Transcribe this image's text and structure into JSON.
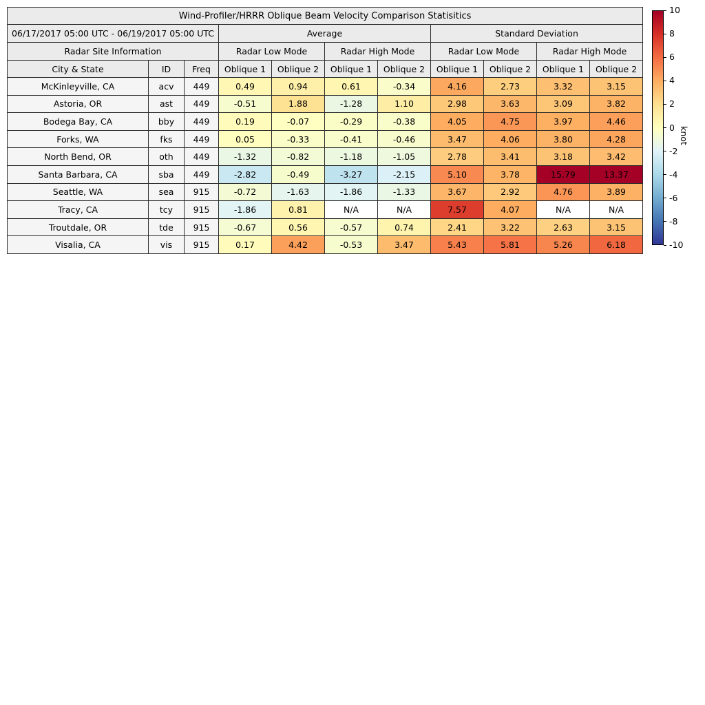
{
  "chart_data": {
    "type": "heatmap",
    "title": "Wind-Profiler/HRRR Oblique Beam Velocity Comparison Statisitics",
    "date_range": "06/17/2017 05:00 UTC - 06/19/2017 05:00 UTC",
    "group_headers": [
      "Average",
      "Standard Deviation"
    ],
    "site_info_header": "Radar Site Information",
    "mode_headers": [
      "Radar Low Mode",
      "Radar High Mode",
      "Radar Low Mode",
      "Radar High Mode"
    ],
    "column_headers": [
      "City & State",
      "ID",
      "Freq",
      "Oblique 1",
      "Oblique 2",
      "Oblique 1",
      "Oblique 2",
      "Oblique 1",
      "Oblique 2",
      "Oblique 1",
      "Oblique 2"
    ],
    "rows": [
      {
        "city": "McKinleyville, CA",
        "id": "acv",
        "freq": "449",
        "values": [
          "0.49",
          "0.94",
          "0.61",
          "-0.34",
          "4.16",
          "2.73",
          "3.32",
          "3.15"
        ]
      },
      {
        "city": "Astoria, OR",
        "id": "ast",
        "freq": "449",
        "values": [
          "-0.51",
          "1.88",
          "-1.28",
          "1.10",
          "2.98",
          "3.63",
          "3.09",
          "3.82"
        ]
      },
      {
        "city": "Bodega Bay, CA",
        "id": "bby",
        "freq": "449",
        "values": [
          "0.19",
          "-0.07",
          "-0.29",
          "-0.38",
          "4.05",
          "4.75",
          "3.97",
          "4.46"
        ]
      },
      {
        "city": "Forks, WA",
        "id": "fks",
        "freq": "449",
        "values": [
          "0.05",
          "-0.33",
          "-0.41",
          "-0.46",
          "3.47",
          "4.06",
          "3.80",
          "4.28"
        ]
      },
      {
        "city": "North Bend, OR",
        "id": "oth",
        "freq": "449",
        "values": [
          "-1.32",
          "-0.82",
          "-1.18",
          "-1.05",
          "2.78",
          "3.41",
          "3.18",
          "3.42"
        ]
      },
      {
        "city": "Santa Barbara, CA",
        "id": "sba",
        "freq": "449",
        "values": [
          "-2.82",
          "-0.49",
          "-3.27",
          "-2.15",
          "5.10",
          "3.78",
          "15.79",
          "13.37"
        ]
      },
      {
        "city": "Seattle, WA",
        "id": "sea",
        "freq": "915",
        "values": [
          "-0.72",
          "-1.63",
          "-1.86",
          "-1.33",
          "3.67",
          "2.92",
          "4.76",
          "3.89"
        ]
      },
      {
        "city": "Tracy, CA",
        "id": "tcy",
        "freq": "915",
        "values": [
          "-1.86",
          "0.81",
          "N/A",
          "N/A",
          "7.57",
          "4.07",
          "N/A",
          "N/A"
        ]
      },
      {
        "city": "Troutdale, OR",
        "id": "tde",
        "freq": "915",
        "values": [
          "-0.67",
          "0.56",
          "-0.57",
          "0.74",
          "2.41",
          "3.22",
          "2.63",
          "3.15"
        ]
      },
      {
        "city": "Visalia, CA",
        "id": "vis",
        "freq": "915",
        "values": [
          "0.17",
          "4.42",
          "-0.53",
          "3.47",
          "5.43",
          "5.81",
          "5.26",
          "6.18"
        ]
      }
    ],
    "colorbar": {
      "label": "knot",
      "min": -10,
      "max": 10,
      "ticks": [
        10,
        8,
        6,
        4,
        2,
        0,
        -2,
        -4,
        -6,
        -8,
        -10
      ],
      "stops": [
        "#313695",
        "#4575b4",
        "#74add1",
        "#abd9e9",
        "#e0f3f8",
        "#ffffbf",
        "#fee090",
        "#fdae61",
        "#f46d43",
        "#d73027",
        "#a50026"
      ]
    }
  }
}
